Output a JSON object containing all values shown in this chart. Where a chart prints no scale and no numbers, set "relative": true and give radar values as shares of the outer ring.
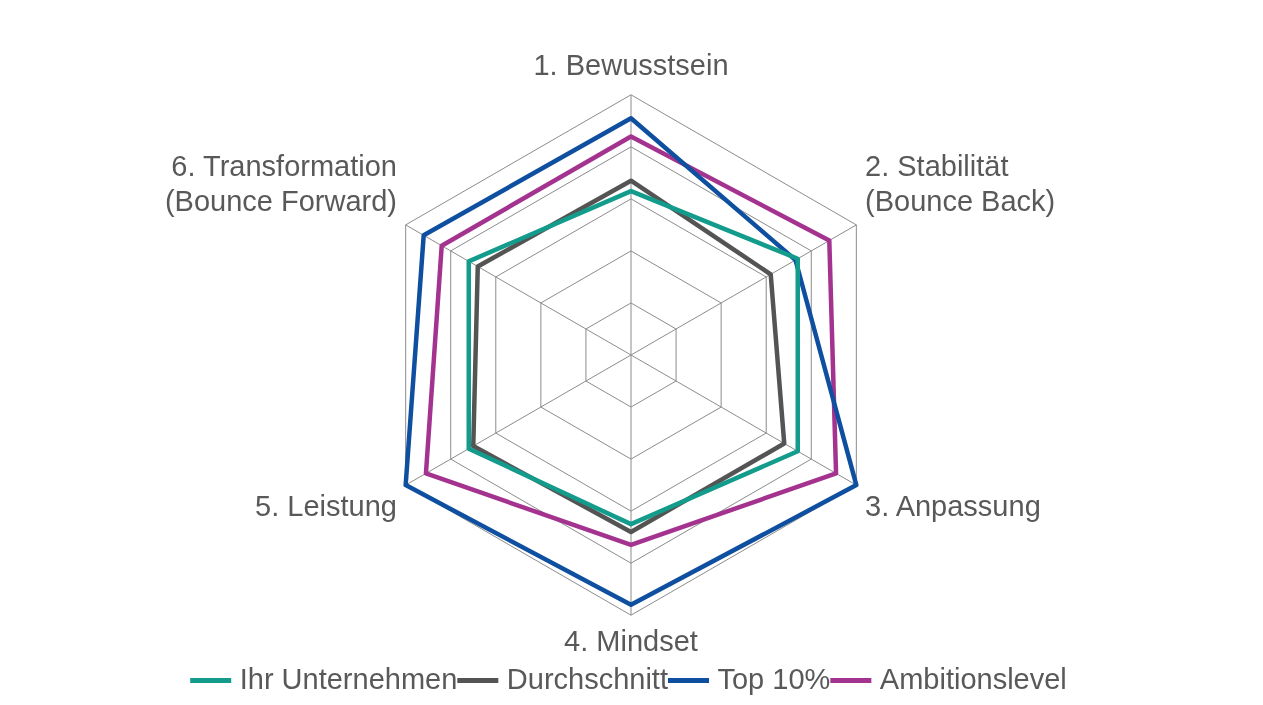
{
  "chart_data": {
    "type": "radar",
    "relative": true,
    "grid": true,
    "legend": "bottom",
    "marker": "none",
    "line_style": "solid",
    "categories": [
      "1. Bewusstsein",
      "2. Stabilität (Bounce Back)",
      "3. Anpassung",
      "4. Mindset",
      "5. Leistung",
      "6. Transformation (Bounce Forward)"
    ],
    "series": [
      {
        "name": "Ihr Unternehmen",
        "color": "#139c8c",
        "values": [
          0.63,
          0.74,
          0.74,
          0.65,
          0.72,
          0.72
        ]
      },
      {
        "name": "Durchschnitt",
        "color": "#545454",
        "values": [
          0.67,
          0.62,
          0.68,
          0.68,
          0.7,
          0.68
        ]
      },
      {
        "name": "Top 10%",
        "color": "#0f4fa0",
        "values": [
          0.91,
          0.73,
          1,
          0.96,
          1,
          0.92
        ]
      },
      {
        "name": "Ambitionslevel",
        "color": "#a3338f",
        "values": [
          0.84,
          0.88,
          0.91,
          0.73,
          0.91,
          0.84
        ]
      }
    ]
  }
}
